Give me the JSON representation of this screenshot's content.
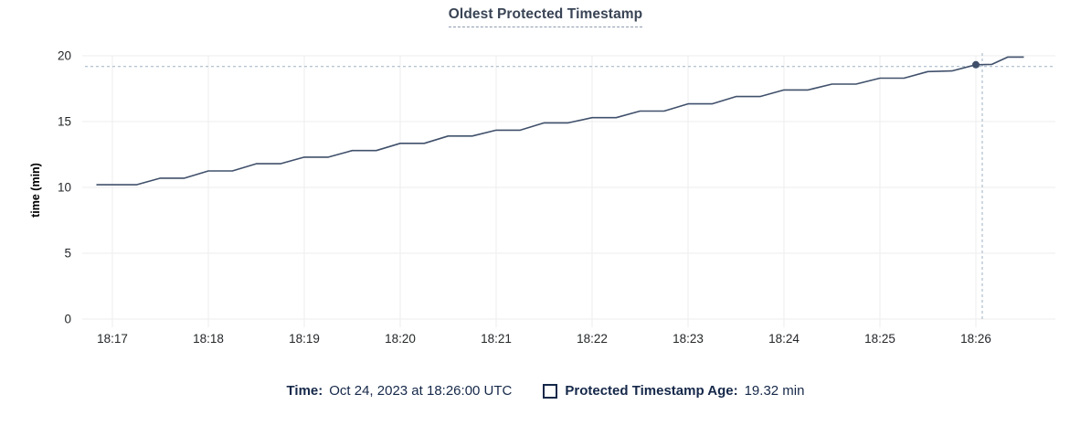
{
  "title": "Oldest Protected Timestamp",
  "legend": {
    "time_label": "Time:",
    "time_value": "Oct 24, 2023 at 18:26:00 UTC",
    "series_label": "Protected Timestamp Age:",
    "series_value": "19.32 min"
  },
  "colors": {
    "line": "#40506b",
    "dot": "#40506b",
    "crosshair": "#9db1c3",
    "grid": "#ededed",
    "tick_text": "#242729",
    "axis_label_text": "#000000",
    "title_text": "#394455",
    "legend_text": "#152849"
  },
  "chart_data": {
    "type": "line",
    "title": "Oldest Protected Timestamp",
    "xlabel": "",
    "ylabel": "time (min)",
    "ylim": [
      0,
      20
    ],
    "grid": true,
    "legend_position": "bottom",
    "y_ticks": [
      0,
      5,
      10,
      15,
      20
    ],
    "x_ticks": [
      "18:17",
      "18:18",
      "18:19",
      "18:20",
      "18:21",
      "18:22",
      "18:23",
      "18:24",
      "18:25",
      "18:26"
    ],
    "series_name": "Protected Timestamp Age",
    "points": [
      [
        "18:16:50",
        10.2
      ],
      [
        "18:17:00",
        10.2
      ],
      [
        "18:17:15",
        10.2
      ],
      [
        "18:17:30",
        10.7
      ],
      [
        "18:17:45",
        10.7
      ],
      [
        "18:18:00",
        11.25
      ],
      [
        "18:18:15",
        11.25
      ],
      [
        "18:18:30",
        11.8
      ],
      [
        "18:18:45",
        11.8
      ],
      [
        "18:19:00",
        12.3
      ],
      [
        "18:19:15",
        12.3
      ],
      [
        "18:19:30",
        12.8
      ],
      [
        "18:19:45",
        12.8
      ],
      [
        "18:20:00",
        13.35
      ],
      [
        "18:20:15",
        13.35
      ],
      [
        "18:20:30",
        13.9
      ],
      [
        "18:20:45",
        13.9
      ],
      [
        "18:21:00",
        14.35
      ],
      [
        "18:21:15",
        14.35
      ],
      [
        "18:21:30",
        14.9
      ],
      [
        "18:21:45",
        14.9
      ],
      [
        "18:22:00",
        15.3
      ],
      [
        "18:22:15",
        15.3
      ],
      [
        "18:22:30",
        15.8
      ],
      [
        "18:22:45",
        15.8
      ],
      [
        "18:23:00",
        16.35
      ],
      [
        "18:23:15",
        16.35
      ],
      [
        "18:23:30",
        16.9
      ],
      [
        "18:23:45",
        16.9
      ],
      [
        "18:24:00",
        17.4
      ],
      [
        "18:24:15",
        17.4
      ],
      [
        "18:24:30",
        17.85
      ],
      [
        "18:24:45",
        17.85
      ],
      [
        "18:25:00",
        18.3
      ],
      [
        "18:25:15",
        18.3
      ],
      [
        "18:25:30",
        18.8
      ],
      [
        "18:25:45",
        18.85
      ],
      [
        "18:26:00",
        19.32
      ],
      [
        "18:26:10",
        19.35
      ],
      [
        "18:26:20",
        19.9
      ],
      [
        "18:26:30",
        19.9
      ]
    ],
    "hover_point": {
      "t": "18:26:00",
      "v": 19.32,
      "time_text": "Oct 24, 2023 at 18:26:00 UTC",
      "value_text": "19.32 min"
    }
  }
}
